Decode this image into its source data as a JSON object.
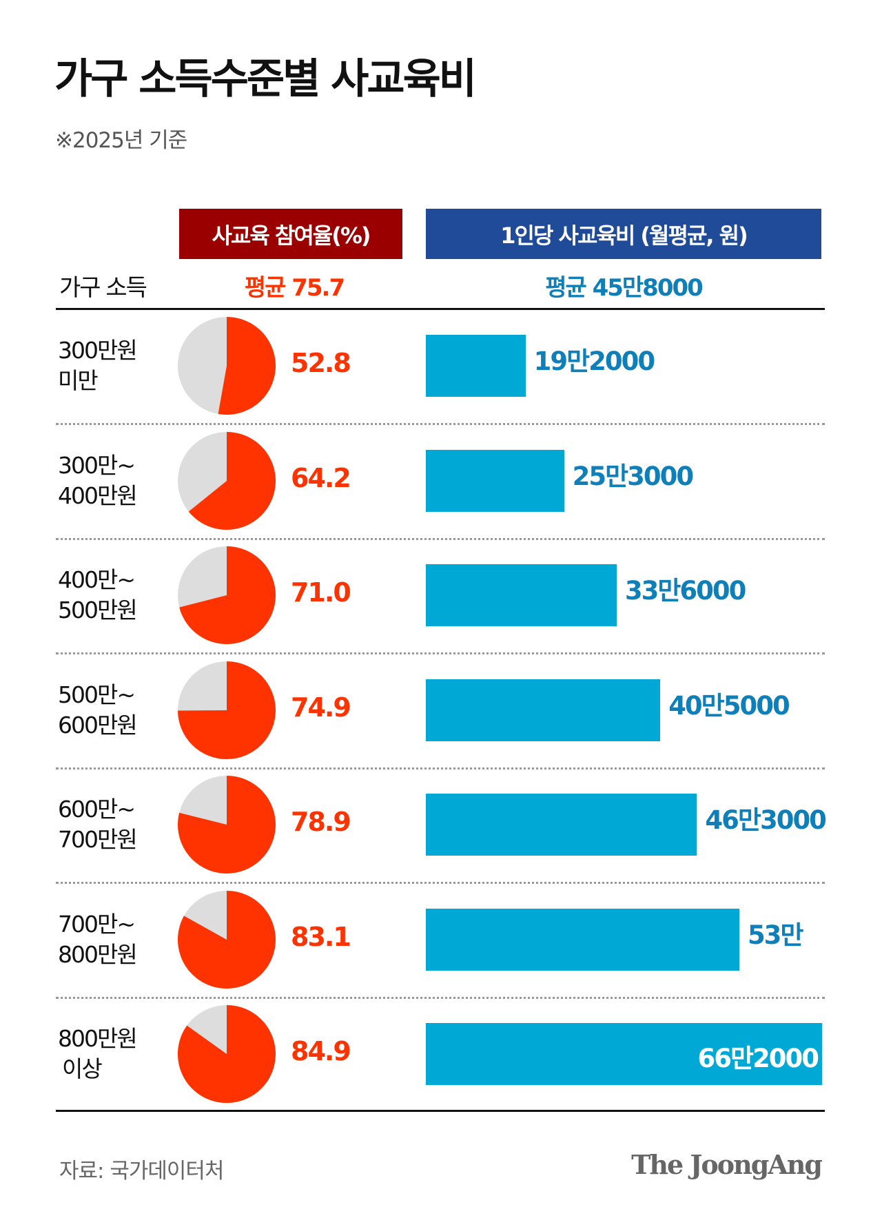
{
  "title": "가구 소득수준별 사교육비",
  "subtitle": "※2025년 기준",
  "headers": {
    "participation": "사교육 참여율(%)",
    "cost": "1인당 사교육비 (월평균, 원)",
    "income": "가구 소득"
  },
  "averages": {
    "participation": "평균 75.7",
    "cost": "평균 45만8000"
  },
  "colors": {
    "pie": "#ff3300",
    "pie_rest": "#dddddd",
    "bar": "#00a8d6",
    "header_red": "#9b0000",
    "header_blue": "#1f4b98",
    "cost_label": "#0e7fb8"
  },
  "chart_data": {
    "type": "bar",
    "categories": [
      [
        "300만원",
        "미만"
      ],
      [
        "300만~",
        "400만원"
      ],
      [
        "400만~",
        "500만원"
      ],
      [
        "500만~",
        "600만원"
      ],
      [
        "600만~",
        "700만원"
      ],
      [
        "700만~",
        "800만원"
      ],
      [
        "800만원",
        "이상"
      ]
    ],
    "participation_rate": [
      52.8,
      64.2,
      71.0,
      74.9,
      78.9,
      83.1,
      84.9
    ],
    "participation_labels": [
      "52.8",
      "64.2",
      "71.0",
      "74.9",
      "78.9",
      "83.1",
      "84.9"
    ],
    "cost_per_person_manwon": [
      19.2,
      25.3,
      33.6,
      40.5,
      46.3,
      53.0,
      66.2
    ],
    "cost_labels": [
      "19만2000",
      "25만3000",
      "33만6000",
      "40만5000",
      "46만3000",
      "53만",
      "66만2000"
    ]
  },
  "footer": {
    "source": "자료: 국가데이터처",
    "logo": "The JoongAng"
  }
}
